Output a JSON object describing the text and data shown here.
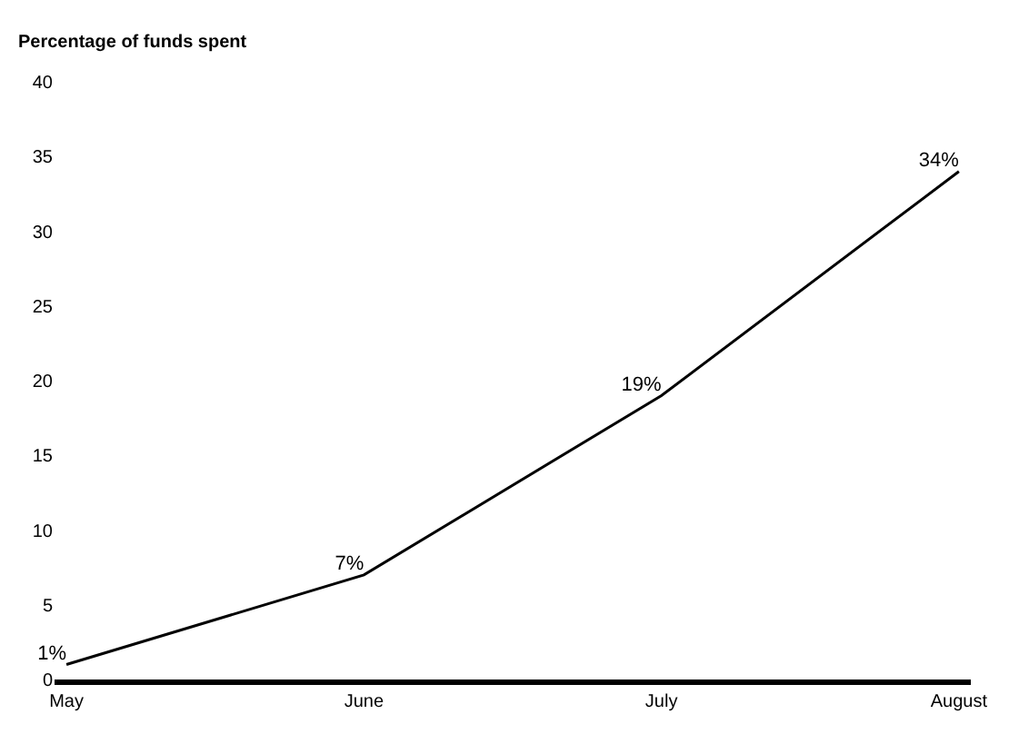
{
  "chart_data": {
    "type": "line",
    "ylabel": "Percentage of funds spent",
    "categories": [
      "May",
      "June",
      "July",
      "August"
    ],
    "series": [
      {
        "color": "#000000",
        "values": [
          1,
          7,
          19,
          34
        ],
        "value_labels": [
          "1%",
          "7%",
          "19%",
          "34%"
        ]
      }
    ],
    "ylim": [
      0,
      40
    ],
    "yticks": [
      0,
      5,
      10,
      15,
      20,
      25,
      30,
      35,
      40
    ],
    "legend": false,
    "marker": "none",
    "line_style": "solid"
  }
}
